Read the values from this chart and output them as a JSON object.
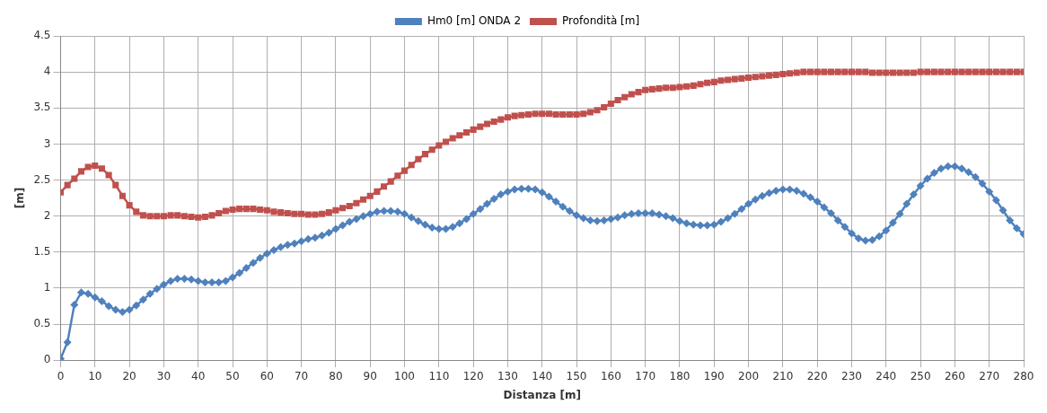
{
  "chart_data": {
    "type": "line",
    "xlabel": "Distanza [m]",
    "ylabel": "[m]",
    "legend": "top",
    "grid": true,
    "line_style": "solid",
    "x": [
      0,
      2,
      4,
      6,
      8,
      10,
      12,
      14,
      16,
      18,
      20,
      22,
      24,
      26,
      28,
      30,
      32,
      34,
      36,
      38,
      40,
      42,
      44,
      46,
      48,
      50,
      52,
      54,
      56,
      58,
      60,
      62,
      64,
      66,
      68,
      70,
      72,
      74,
      76,
      78,
      80,
      82,
      84,
      86,
      88,
      90,
      92,
      94,
      96,
      98,
      100,
      102,
      104,
      106,
      108,
      110,
      112,
      114,
      116,
      118,
      120,
      122,
      124,
      126,
      128,
      130,
      132,
      134,
      136,
      138,
      140,
      142,
      144,
      146,
      148,
      150,
      152,
      154,
      156,
      158,
      160,
      162,
      164,
      166,
      168,
      170,
      172,
      174,
      176,
      178,
      180,
      182,
      184,
      186,
      188,
      190,
      192,
      194,
      196,
      198,
      200,
      202,
      204,
      206,
      208,
      210,
      212,
      214,
      216,
      218,
      220,
      222,
      224,
      226,
      228,
      230,
      232,
      234,
      236,
      238,
      240,
      242,
      244,
      246,
      248,
      250,
      252,
      254,
      256,
      258,
      260,
      262,
      264,
      266,
      268,
      270,
      272,
      274,
      276,
      278,
      280
    ],
    "xlim": [
      0,
      280
    ],
    "xticks": [
      0,
      10,
      20,
      30,
      40,
      50,
      60,
      70,
      80,
      90,
      100,
      110,
      120,
      130,
      140,
      150,
      160,
      170,
      180,
      190,
      200,
      210,
      220,
      230,
      240,
      250,
      260,
      270,
      280
    ],
    "ylim": [
      0,
      4.5
    ],
    "yticks": [
      0,
      0.5,
      1,
      1.5,
      2,
      2.5,
      3,
      3.5,
      4,
      4.5
    ],
    "series": [
      {
        "name": "Hm0 [m] ONDA 2",
        "color": "#4f81bd",
        "marker": "diamond",
        "values": [
          0.02,
          0.25,
          0.77,
          0.94,
          0.92,
          0.87,
          0.82,
          0.75,
          0.7,
          0.67,
          0.7,
          0.76,
          0.84,
          0.92,
          0.99,
          1.05,
          1.1,
          1.13,
          1.13,
          1.12,
          1.1,
          1.08,
          1.08,
          1.08,
          1.1,
          1.15,
          1.21,
          1.28,
          1.35,
          1.42,
          1.48,
          1.53,
          1.57,
          1.6,
          1.62,
          1.65,
          1.68,
          1.7,
          1.73,
          1.77,
          1.82,
          1.87,
          1.92,
          1.96,
          2.0,
          2.03,
          2.06,
          2.07,
          2.07,
          2.06,
          2.03,
          1.98,
          1.93,
          1.88,
          1.84,
          1.82,
          1.82,
          1.85,
          1.9,
          1.96,
          2.03,
          2.1,
          2.17,
          2.24,
          2.3,
          2.34,
          2.37,
          2.38,
          2.38,
          2.37,
          2.33,
          2.27,
          2.2,
          2.13,
          2.07,
          2.01,
          1.97,
          1.94,
          1.93,
          1.94,
          1.96,
          1.98,
          2.01,
          2.03,
          2.04,
          2.04,
          2.04,
          2.02,
          2.0,
          1.97,
          1.93,
          1.9,
          1.88,
          1.87,
          1.87,
          1.88,
          1.92,
          1.97,
          2.03,
          2.1,
          2.17,
          2.23,
          2.28,
          2.32,
          2.35,
          2.37,
          2.37,
          2.35,
          2.31,
          2.26,
          2.2,
          2.12,
          2.04,
          1.94,
          1.85,
          1.76,
          1.69,
          1.66,
          1.67,
          1.72,
          1.8,
          1.91,
          2.03,
          2.17,
          2.3,
          2.42,
          2.52,
          2.6,
          2.66,
          2.69,
          2.69,
          2.66,
          2.61,
          2.54,
          2.45,
          2.34,
          2.22,
          2.08,
          1.94,
          1.83,
          1.75
        ]
      },
      {
        "name": "Profondità [m]",
        "color": "#c0504d",
        "marker": "square",
        "values": [
          2.33,
          2.43,
          2.52,
          2.62,
          2.68,
          2.7,
          2.66,
          2.57,
          2.43,
          2.28,
          2.15,
          2.06,
          2.01,
          2.0,
          2.0,
          2.0,
          2.01,
          2.01,
          2.0,
          1.99,
          1.98,
          1.99,
          2.01,
          2.04,
          2.07,
          2.09,
          2.1,
          2.1,
          2.1,
          2.09,
          2.08,
          2.06,
          2.05,
          2.04,
          2.03,
          2.03,
          2.02,
          2.02,
          2.03,
          2.05,
          2.08,
          2.11,
          2.14,
          2.18,
          2.23,
          2.28,
          2.34,
          2.41,
          2.48,
          2.56,
          2.63,
          2.71,
          2.79,
          2.86,
          2.92,
          2.98,
          3.03,
          3.08,
          3.12,
          3.16,
          3.2,
          3.24,
          3.28,
          3.31,
          3.34,
          3.37,
          3.39,
          3.4,
          3.41,
          3.42,
          3.42,
          3.42,
          3.41,
          3.41,
          3.41,
          3.41,
          3.42,
          3.44,
          3.47,
          3.51,
          3.56,
          3.61,
          3.65,
          3.69,
          3.72,
          3.75,
          3.76,
          3.77,
          3.78,
          3.78,
          3.79,
          3.8,
          3.81,
          3.83,
          3.85,
          3.86,
          3.88,
          3.89,
          3.9,
          3.91,
          3.92,
          3.93,
          3.94,
          3.95,
          3.96,
          3.97,
          3.98,
          3.99,
          4.0,
          4.0,
          4.0,
          4.0,
          4.0,
          4.0,
          4.0,
          4.0,
          4.0,
          4.0,
          3.99,
          3.99,
          3.99,
          3.99,
          3.99,
          3.99,
          3.99,
          4.0,
          4.0,
          4.0,
          4.0,
          4.0,
          4.0,
          4.0,
          4.0,
          4.0,
          4.0,
          4.0,
          4.0,
          4.0,
          4.0,
          4.0,
          4.0
        ]
      }
    ]
  }
}
